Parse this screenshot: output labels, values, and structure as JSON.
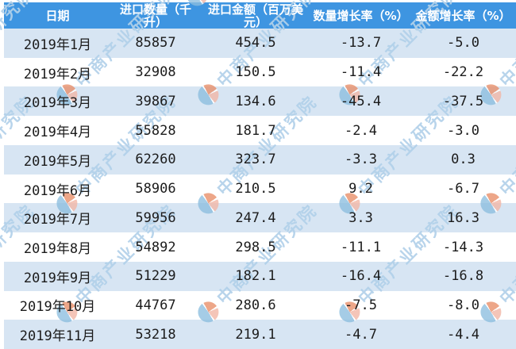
{
  "chart_data": {
    "type": "table",
    "columns": [
      "日期",
      "进口数量（千升）",
      "进口金额（百万美元）",
      "数量增长率（%）",
      "金额增长率（%）"
    ],
    "rows": [
      [
        "2019年1月",
        "85857",
        "454.5",
        "-13.7",
        "-5.0"
      ],
      [
        "2019年2月",
        "32908",
        "150.5",
        "-11.4",
        "-22.2"
      ],
      [
        "2019年3月",
        "39867",
        "134.6",
        "-45.4",
        "-37.5"
      ],
      [
        "2019年4月",
        "55828",
        "181.7",
        "-2.4",
        "-3.0"
      ],
      [
        "2019年5月",
        "62260",
        "323.7",
        "-3.3",
        "0.3"
      ],
      [
        "2019年6月",
        "58906",
        "210.5",
        "9.2",
        "-6.7"
      ],
      [
        "2019年7月",
        "59956",
        "247.4",
        "3.3",
        "16.3"
      ],
      [
        "2019年8月",
        "54892",
        "298.5",
        "-11.1",
        "-14.3"
      ],
      [
        "2019年9月",
        "51229",
        "182.1",
        "-16.4",
        "-16.8"
      ],
      [
        "2019年10月",
        "44767",
        "280.6",
        "-7.5",
        "-8.0"
      ],
      [
        "2019年11月",
        "53218",
        "219.1",
        "-4.7",
        "-4.4"
      ]
    ],
    "layout": {
      "striped": true,
      "first_data_row_shaded": true
    }
  },
  "watermark": {
    "text": "中商产业研究院"
  },
  "colors": {
    "header_bg": "#3e95e1",
    "header_text": "#ffffff",
    "row_alt_bg": "#d7e5f3",
    "row_bg": "#ffffff",
    "cell_text": "#1b1b1b",
    "watermark_text": "#b2d1ea",
    "logo_blue": "#8cbede",
    "logo_orange": "#e88d68",
    "logo_salmon": "#f1b5a5"
  }
}
